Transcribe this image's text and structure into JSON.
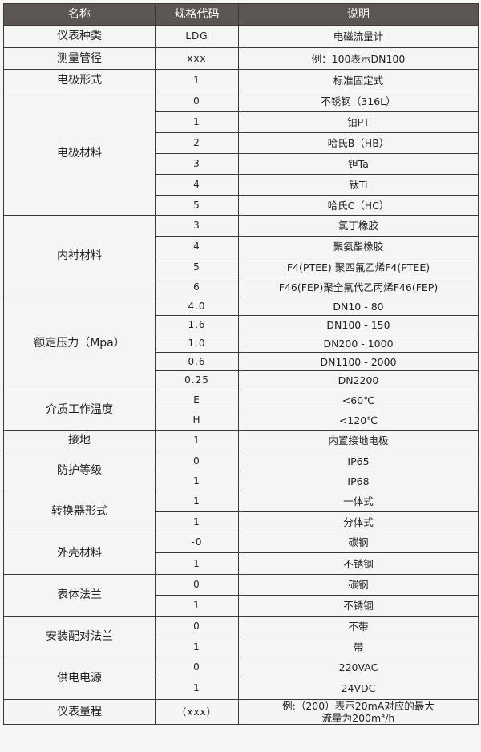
{
  "header": {
    "name": "名称",
    "code": "规格代码",
    "desc": "说明"
  },
  "groups": [
    {
      "name": "仪表种类",
      "rows": [
        {
          "code": "LDG",
          "desc": "电磁流量计"
        }
      ]
    },
    {
      "name": "测量管径",
      "rows": [
        {
          "code": "xxx",
          "desc": "例：100表示DN100"
        }
      ]
    },
    {
      "name": "电极形式",
      "rows": [
        {
          "code": "1",
          "desc": "标准固定式"
        }
      ]
    },
    {
      "name": "电极材料",
      "rows": [
        {
          "code": "0",
          "desc": "不锈钢（316L）"
        },
        {
          "code": "1",
          "desc": "铂PT"
        },
        {
          "code": "2",
          "desc": "哈氏B（HB）"
        },
        {
          "code": "3",
          "desc": "钽Ta"
        },
        {
          "code": "4",
          "desc": "钛Ti"
        },
        {
          "code": "5",
          "desc": "哈氏C（HC）"
        }
      ]
    },
    {
      "name": "内衬材料",
      "rows": [
        {
          "code": "3",
          "desc": "氯丁橡胶"
        },
        {
          "code": "4",
          "desc": "聚氨酯橡胶"
        },
        {
          "code": "5",
          "desc": "F4(PTEE) 聚四氟乙烯F4(PTEE)"
        },
        {
          "code": "6",
          "desc": "F46(FEP)聚全氟代乙丙烯F46(FEP)"
        }
      ]
    },
    {
      "name": "额定压力（Mpa）",
      "rows": [
        {
          "code": "4.0",
          "desc": "DN10 - 80"
        },
        {
          "code": "1.6",
          "desc": "DN100 - 150"
        },
        {
          "code": "1.0",
          "desc": "DN200 - 1000"
        },
        {
          "code": "0.6",
          "desc": "DN1100 - 2000"
        },
        {
          "code": "0.25",
          "desc": "DN2200"
        }
      ]
    },
    {
      "name": "介质工作温度",
      "rows": [
        {
          "code": "E",
          "desc": "<60℃"
        },
        {
          "code": "H",
          "desc": "<120℃"
        }
      ]
    },
    {
      "name": "接地",
      "rows": [
        {
          "code": "1",
          "desc": "内置接地电极"
        }
      ]
    },
    {
      "name": "防护等级",
      "rows": [
        {
          "code": "0",
          "desc": "IP65"
        },
        {
          "code": "1",
          "desc": "IP68"
        }
      ]
    },
    {
      "name": "转换器形式",
      "rows": [
        {
          "code": "1",
          "desc": "一体式"
        },
        {
          "code": "1",
          "desc": "分体式"
        }
      ]
    },
    {
      "name": "外壳材料",
      "rows": [
        {
          "code": "-0",
          "desc": "碳钢"
        },
        {
          "code": "1",
          "desc": "不锈钢"
        }
      ]
    },
    {
      "name": "表体法兰",
      "rows": [
        {
          "code": "0",
          "desc": "碳钢"
        },
        {
          "code": "1",
          "desc": "不锈钢"
        }
      ]
    },
    {
      "name": "安装配对法兰",
      "rows": [
        {
          "code": "0",
          "desc": "不带"
        },
        {
          "code": "1",
          "desc": "带"
        }
      ]
    },
    {
      "name": "供电电源",
      "rows": [
        {
          "code": "0",
          "desc": "220VAC"
        },
        {
          "code": "1",
          "desc": "24VDC"
        }
      ]
    },
    {
      "name": "仪表量程",
      "rows": [
        {
          "code": "（xxx）",
          "desc": "例:（200）表示20mA对应的最大\n流量为200m³/h"
        }
      ]
    }
  ]
}
